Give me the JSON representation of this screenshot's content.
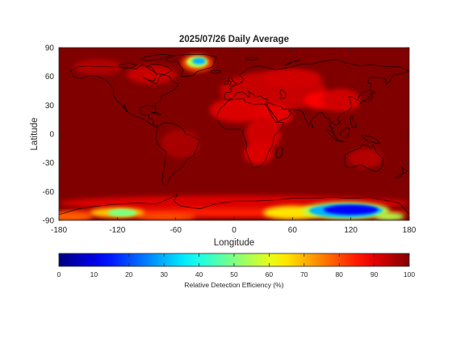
{
  "chart_data": {
    "type": "heatmap",
    "title": "2025/07/26 Daily Average",
    "xlabel": "Longitude",
    "ylabel": "Latitude",
    "xlim": [
      -180,
      180
    ],
    "ylim": [
      -90,
      90
    ],
    "x_ticks": [
      -180,
      -120,
      -60,
      0,
      60,
      120,
      180
    ],
    "y_ticks": [
      90,
      60,
      30,
      0,
      -30,
      -60,
      -90
    ],
    "colorbar": {
      "label": "Relative Detection Efficiency (%)",
      "range": [
        0,
        100
      ],
      "ticks": [
        0,
        10,
        20,
        30,
        40,
        50,
        60,
        70,
        80,
        90,
        100
      ],
      "colormap": "jet",
      "orientation": "horizontal"
    },
    "background_value": 100,
    "regions": [
      {
        "name": "Greenland",
        "lon_center": -38,
        "lat_center": 75,
        "min_value": 25
      },
      {
        "name": "Africa / Middle East",
        "lon_center": 35,
        "lat_center": 20,
        "min_value": 88
      },
      {
        "name": "Tibetan Plateau",
        "lon_center": 90,
        "lat_center": 33,
        "min_value": 88
      },
      {
        "name": "East Antarctica",
        "lon_center": 115,
        "lat_center": -80,
        "min_value": 8
      },
      {
        "name": "West Antarctica",
        "lon_center": -115,
        "lat_center": -82,
        "min_value": 45
      }
    ],
    "grid": false,
    "coastlines": true
  },
  "colors": {
    "background": "#ffffff",
    "axis": "#262626",
    "coastline": "#000000"
  }
}
